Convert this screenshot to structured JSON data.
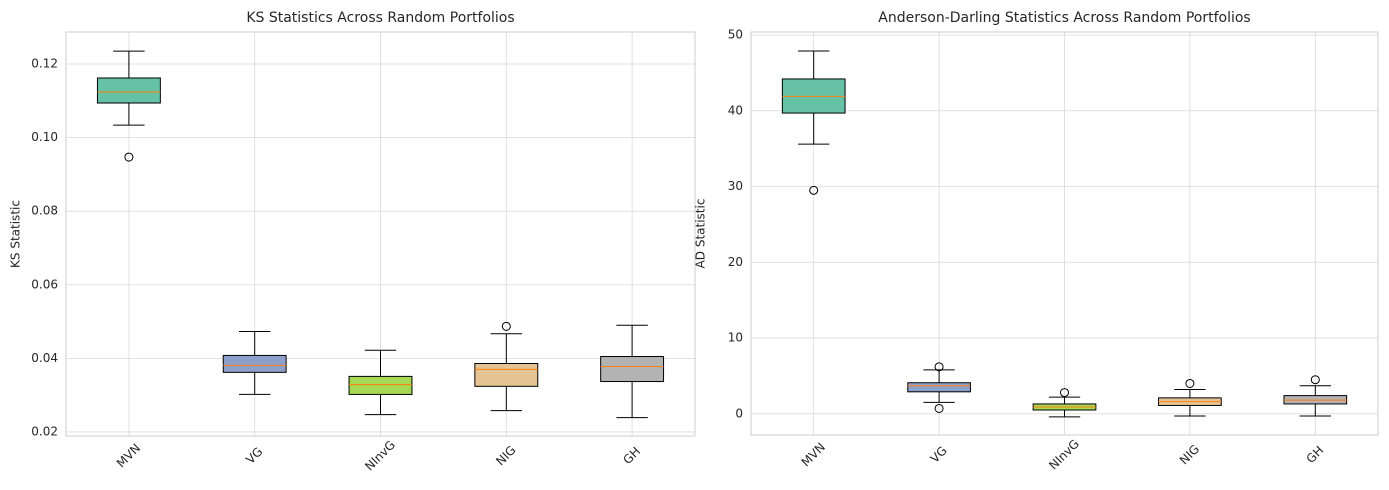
{
  "chart_data": [
    {
      "type": "box",
      "title": "KS Statistics Across Random Portfolios",
      "ylabel": "KS Statistic",
      "categories": [
        "MVN",
        "VG",
        "NInvG",
        "NIG",
        "GH"
      ],
      "colors": [
        "#66c2a5",
        "#8da0cb",
        "#a6d854",
        "#e5c494",
        "#b3b3b3"
      ],
      "median_color": "#ff7f0e",
      "boxes": [
        {
          "whislo": 0.1034,
          "q1": 0.1094,
          "med": 0.1124,
          "q3": 0.1162,
          "whishi": 0.1235,
          "fliers": [
            0.0947
          ]
        },
        {
          "whislo": 0.0302,
          "q1": 0.0362,
          "med": 0.0381,
          "q3": 0.0408,
          "whishi": 0.0473,
          "fliers": []
        },
        {
          "whislo": 0.0247,
          "q1": 0.0302,
          "med": 0.0329,
          "q3": 0.0351,
          "whishi": 0.0422,
          "fliers": []
        },
        {
          "whislo": 0.0258,
          "q1": 0.0324,
          "med": 0.037,
          "q3": 0.0386,
          "whishi": 0.0467,
          "fliers": [
            0.0487
          ]
        },
        {
          "whislo": 0.0239,
          "q1": 0.0337,
          "med": 0.0378,
          "q3": 0.0405,
          "whishi": 0.049,
          "fliers": []
        }
      ],
      "ylim": [
        0.0189,
        0.1287
      ],
      "yticks": [
        0.02,
        0.04,
        0.06,
        0.08,
        {
          "value": 0.1,
          "label": "0.10"
        },
        0.12
      ],
      "grid": true
    },
    {
      "type": "box",
      "title": "Anderson-Darling Statistics Across Random Portfolios",
      "ylabel": "AD Statistic",
      "categories": [
        "MVN",
        "VG",
        "NInvG",
        "NIG",
        "GH"
      ],
      "colors": [
        "#66c2a5",
        "#8da0cb",
        "#a6d854",
        "#e5c494",
        "#b3b3b3"
      ],
      "median_color": "#ff7f0e",
      "boxes": [
        {
          "whislo": 35.6,
          "q1": 39.7,
          "med": 41.9,
          "q3": 44.2,
          "whishi": 47.9,
          "fliers": [
            29.5
          ]
        },
        {
          "whislo": 1.5,
          "q1": 2.9,
          "med": 3.7,
          "q3": 4.1,
          "whishi": 5.8,
          "fliers": [
            6.2,
            0.7
          ]
        },
        {
          "whislo": -0.4,
          "q1": 0.5,
          "med": 0.9,
          "q3": 1.3,
          "whishi": 2.2,
          "fliers": [
            2.8
          ]
        },
        {
          "whislo": -0.3,
          "q1": 1.1,
          "med": 1.6,
          "q3": 2.1,
          "whishi": 3.2,
          "fliers": [
            4.0
          ]
        },
        {
          "whislo": -0.3,
          "q1": 1.3,
          "med": 1.8,
          "q3": 2.4,
          "whishi": 3.7,
          "fliers": [
            4.5
          ]
        }
      ],
      "ylim": [
        -2.8,
        50.4
      ],
      "yticks": [
        0,
        10,
        20,
        30,
        40,
        50
      ],
      "grid": true
    }
  ]
}
